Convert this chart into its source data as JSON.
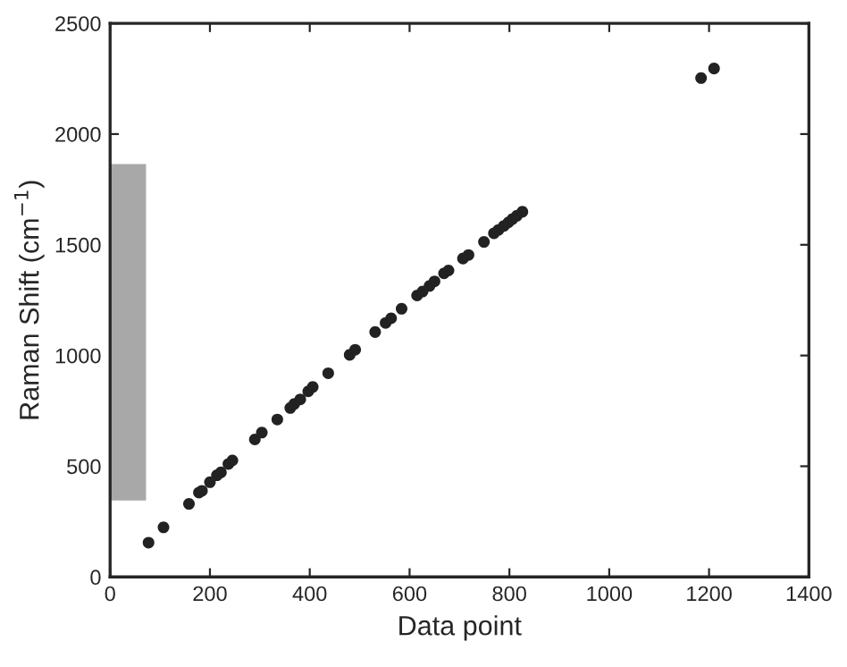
{
  "chart_data": {
    "type": "scatter",
    "xlabel": "Data point",
    "ylabel": "Raman Shift (cm$^{−1}$)",
    "xlim": [
      0,
      1400
    ],
    "ylim": [
      0,
      2500
    ],
    "xticks": [
      0,
      200,
      400,
      600,
      800,
      1000,
      1200,
      1400
    ],
    "yticks": [
      0,
      500,
      1000,
      1500,
      2000,
      2500
    ],
    "grid": false,
    "marker": "circle",
    "series": [
      {
        "type": "bar",
        "color": "#a8a8a8",
        "x": [
          35
        ],
        "base": [
          350
        ],
        "values": [
          1510
        ]
      },
      {
        "color": "#222222",
        "x": [
          77,
          107,
          158,
          178,
          184,
          200,
          214,
          222,
          237,
          245,
          290,
          304,
          335,
          361,
          369,
          381,
          397,
          406,
          437,
          480,
          491,
          531,
          552,
          563,
          584,
          615,
          626,
          640,
          650,
          669,
          678,
          707,
          718,
          749,
          769,
          778,
          789,
          798,
          806,
          815,
          826,
          1184,
          1210
        ],
        "values": [
          155,
          224,
          330,
          381,
          389,
          428,
          459,
          472,
          510,
          526,
          621,
          652,
          711,
          763,
          781,
          802,
          838,
          858,
          920,
          1003,
          1026,
          1106,
          1147,
          1168,
          1211,
          1271,
          1289,
          1314,
          1335,
          1371,
          1384,
          1438,
          1454,
          1513,
          1552,
          1567,
          1585,
          1601,
          1616,
          1631,
          1649,
          2253,
          2296
        ]
      }
    ]
  }
}
